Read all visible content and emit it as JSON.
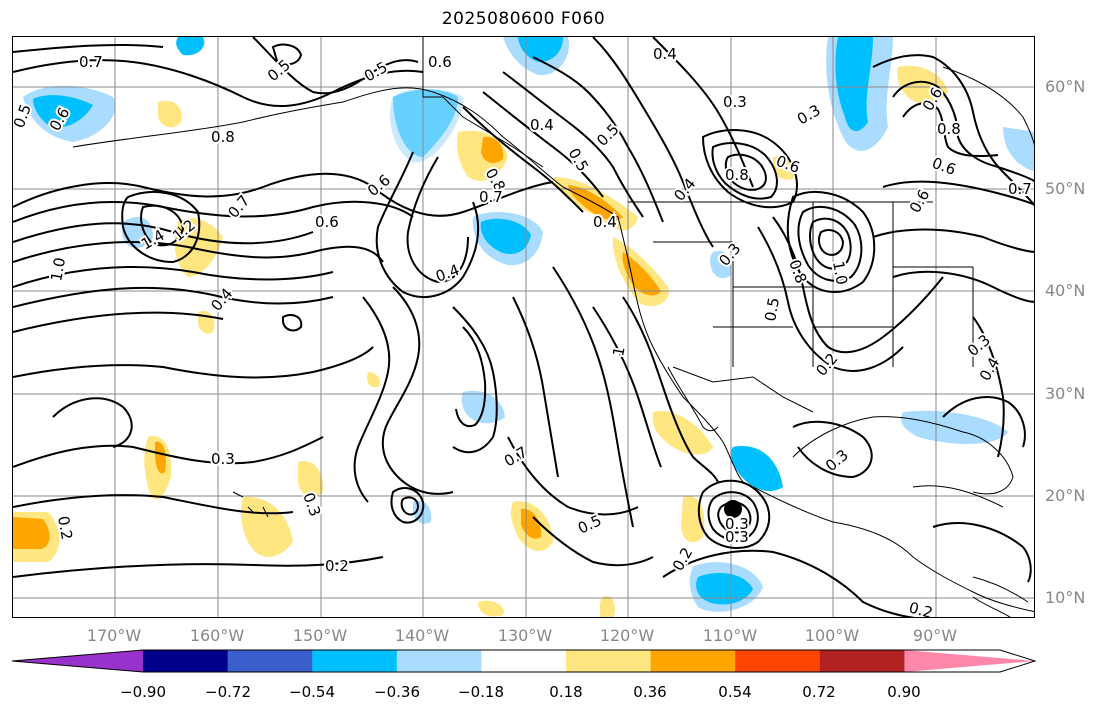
{
  "title": "2025080600 F060",
  "lat_labels": [
    "60°N",
    "50°N",
    "40°N",
    "30°N",
    "20°N",
    "10°N"
  ],
  "lon_labels": [
    "170°W",
    "160°W",
    "150°W",
    "140°W",
    "130°W",
    "120°W",
    "110°W",
    "100°W",
    "90°W"
  ],
  "colorbar": {
    "ticks": [
      "−0.90",
      "−0.72",
      "−0.54",
      "−0.36",
      "−0.18",
      "0.18",
      "0.36",
      "0.54",
      "0.72",
      "0.90"
    ],
    "colors": [
      "#9932cc",
      "#00008b",
      "#3a5fcd",
      "#00bfff",
      "#aadcff",
      "#ffffff",
      "#ffe680",
      "#ffa500",
      "#ff4500",
      "#b22222",
      "#ff88aa"
    ]
  },
  "contour_labels": [
    "0.7",
    "0.6",
    "0.5",
    "0.5",
    "0.4",
    "0.3",
    "0.3",
    "0.8",
    "0.6",
    "0.6",
    "0.8",
    "0.5",
    "0.6",
    "0.8",
    "0.5",
    "0.6",
    "0.4",
    "0.5",
    "0.6",
    "0.7",
    "0.4",
    "0.8",
    "0.6",
    "1.4",
    "1.2",
    "0.7",
    "0.6",
    "1.0",
    "0.4",
    "0.4",
    "0.3",
    "0.8",
    "1.0",
    "0.5",
    "0.2",
    "0.3",
    "0.4",
    "0.3",
    "0.2",
    "0.3",
    "0.7",
    "0.3",
    "0.5",
    "0.3",
    "0.2",
    "0.2",
    "0.2",
    "0.3",
    "1",
    "0.7",
    "0.4"
  ]
}
